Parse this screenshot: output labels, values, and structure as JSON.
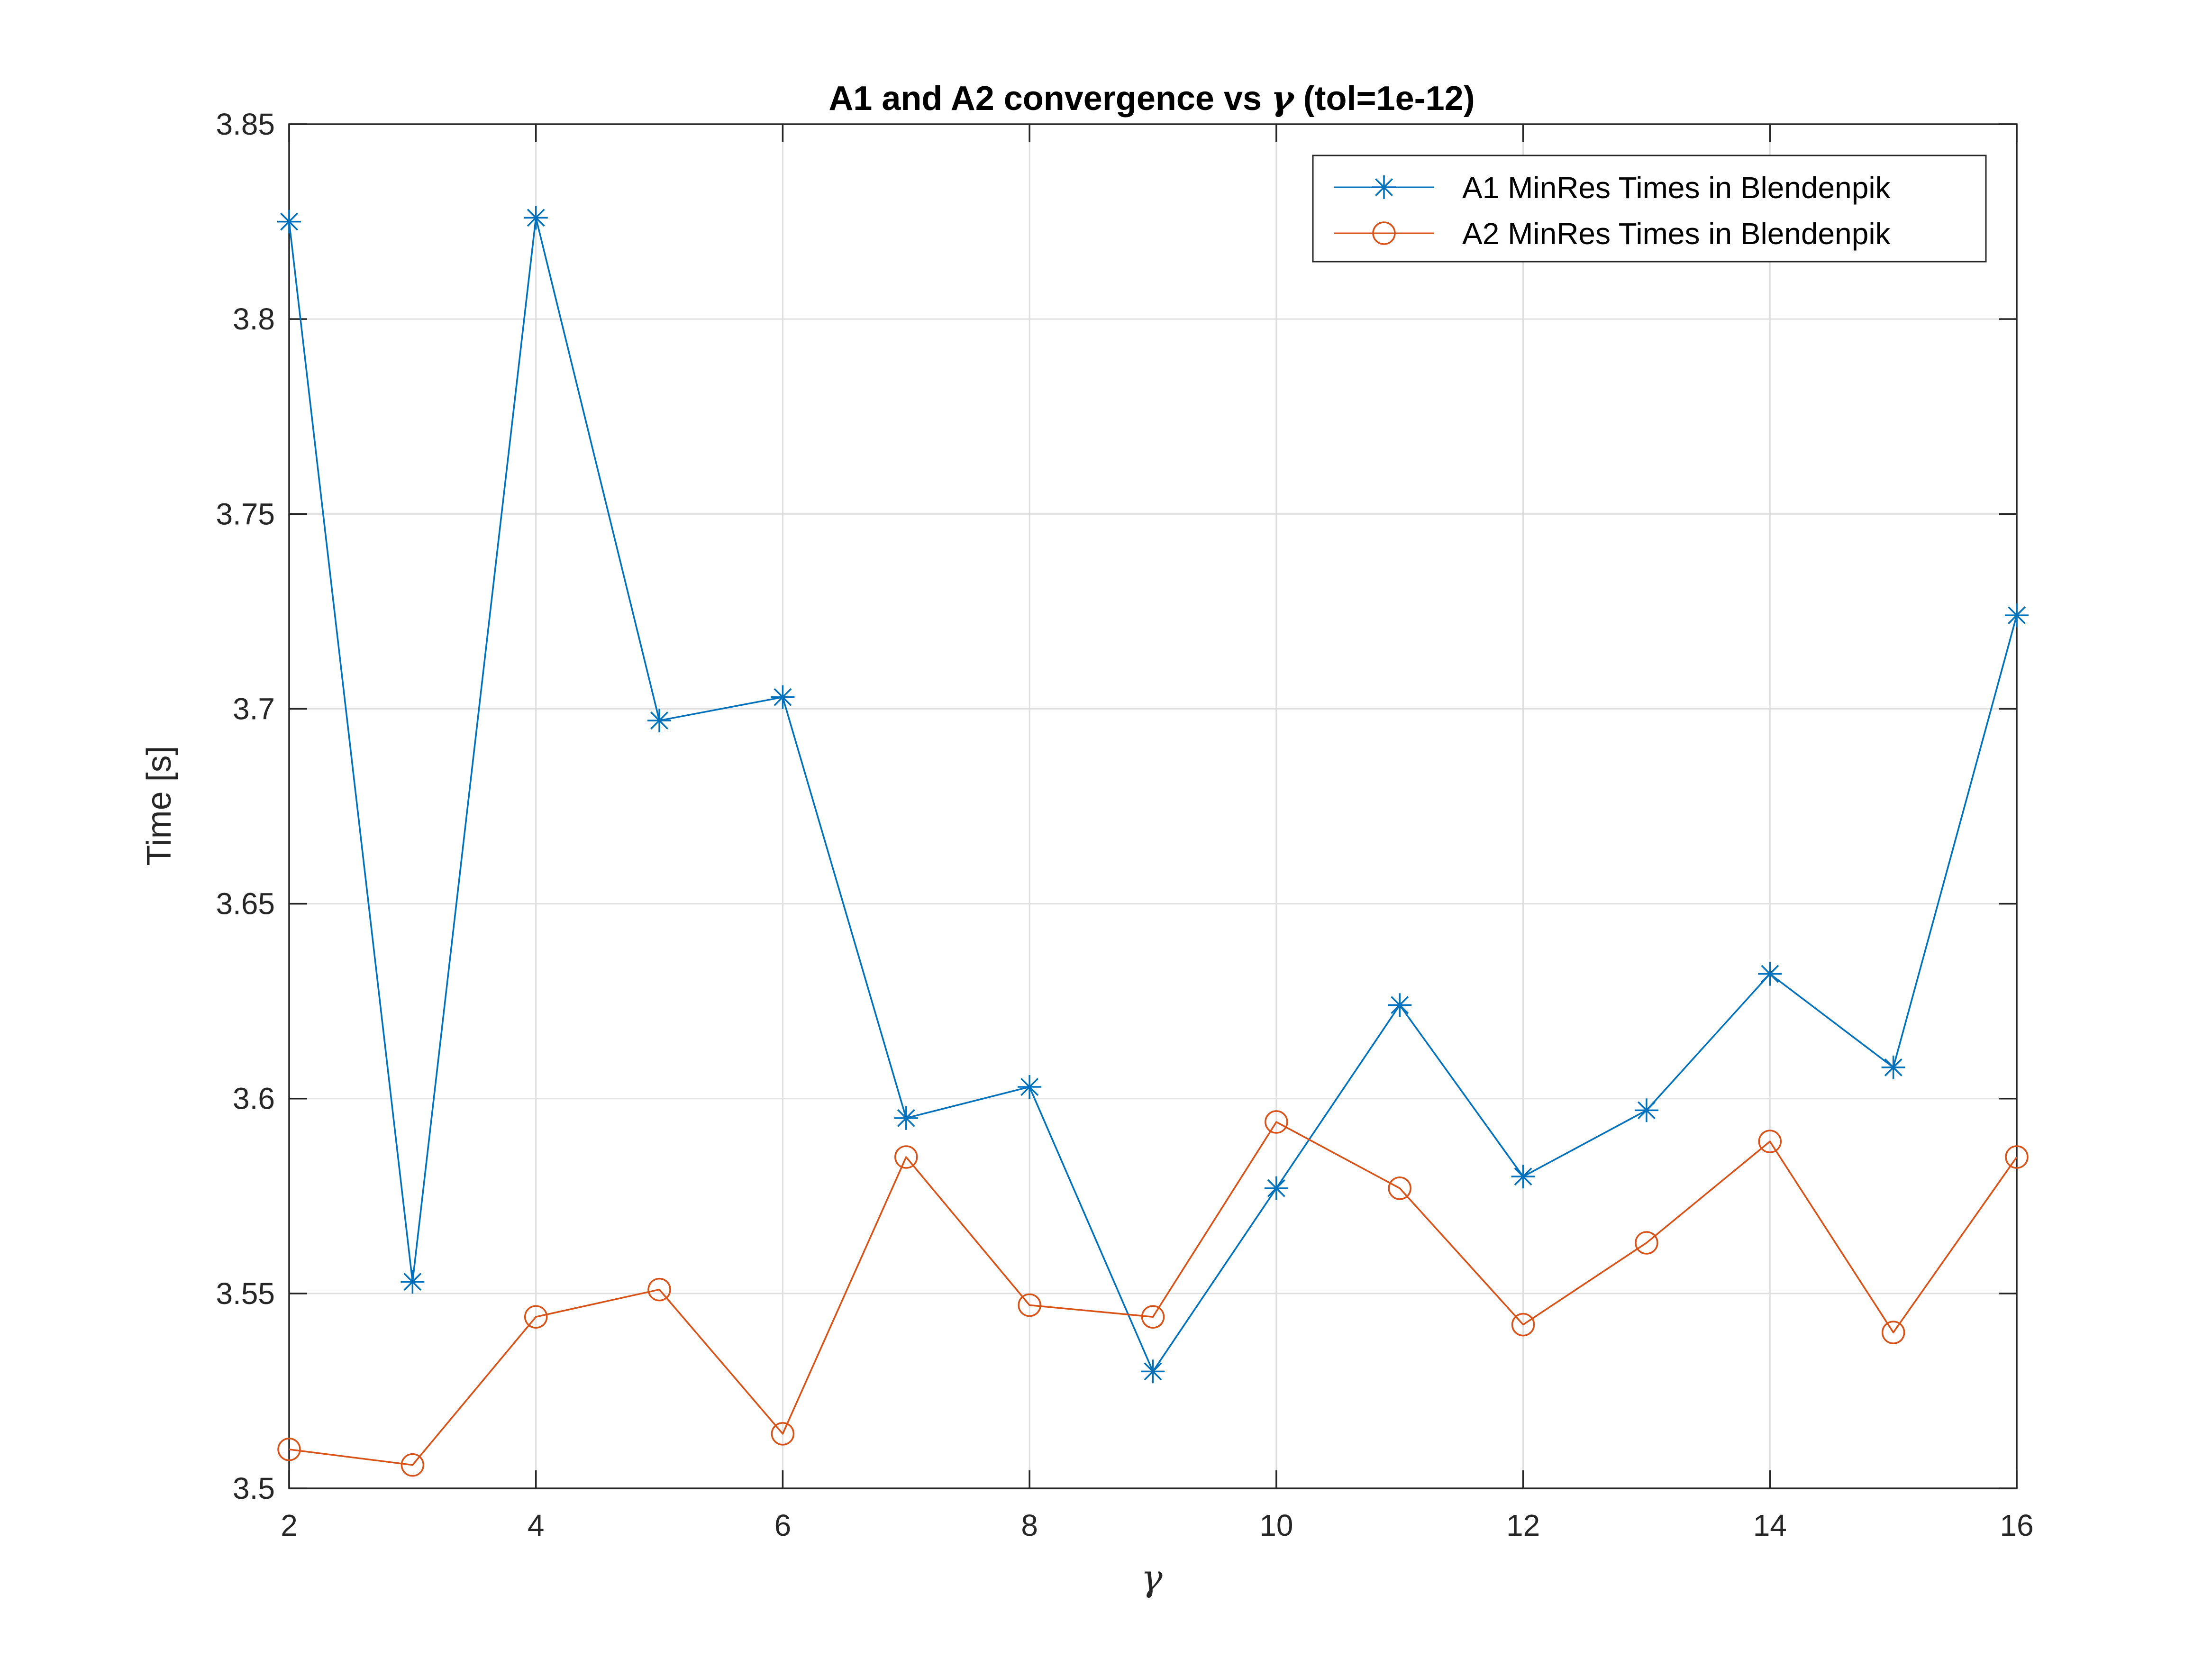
{
  "chart_data": {
    "type": "line",
    "title_prefix": "A1 and A2 convergence vs ",
    "title_symbol": "γ",
    "title_suffix": " (tol=1e-12)",
    "xlabel": "γ",
    "ylabel": "Time [s]",
    "xlim": [
      2,
      16
    ],
    "ylim": [
      3.5,
      3.85
    ],
    "xticks": [
      2,
      4,
      6,
      8,
      10,
      12,
      14,
      16
    ],
    "yticks": [
      3.5,
      3.55,
      3.6,
      3.65,
      3.7,
      3.75,
      3.8,
      3.85
    ],
    "xtick_labels": [
      "2",
      "4",
      "6",
      "8",
      "10",
      "12",
      "14",
      "16"
    ],
    "ytick_labels": [
      "3.5",
      "3.55",
      "3.6",
      "3.65",
      "3.7",
      "3.75",
      "3.8",
      "3.85"
    ],
    "grid": true,
    "legend_position": "top-right",
    "x": [
      2,
      3,
      4,
      5,
      6,
      7,
      8,
      9,
      10,
      11,
      12,
      13,
      14,
      15,
      16
    ],
    "series": [
      {
        "name": "A1 MinRes Times in Blendenpik",
        "marker": "asterisk",
        "color": "#0072BD",
        "values": [
          3.825,
          3.553,
          3.826,
          3.697,
          3.703,
          3.595,
          3.603,
          3.53,
          3.577,
          3.624,
          3.58,
          3.597,
          3.632,
          3.608,
          3.724
        ]
      },
      {
        "name": "A2 MinRes Times in Blendenpik",
        "marker": "circle",
        "color": "#D95319",
        "values": [
          3.51,
          3.506,
          3.544,
          3.551,
          3.514,
          3.585,
          3.547,
          3.544,
          3.594,
          3.577,
          3.542,
          3.563,
          3.589,
          3.54,
          3.585
        ]
      }
    ]
  }
}
